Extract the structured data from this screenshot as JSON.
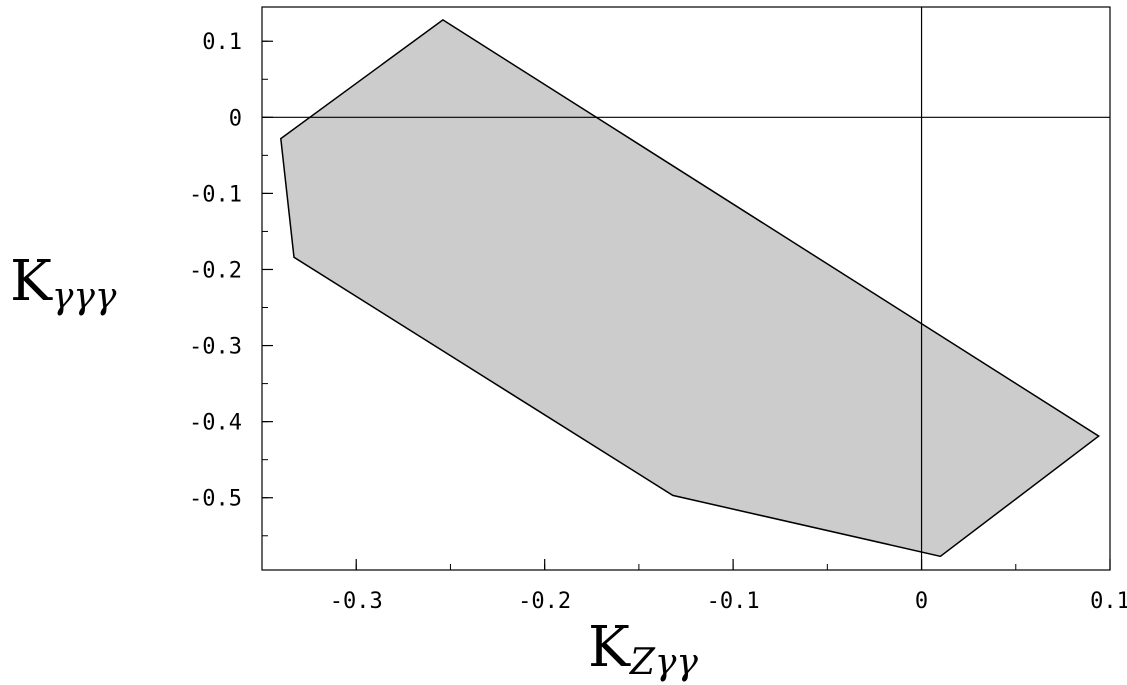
{
  "chart_data": {
    "type": "area",
    "xlabel": {
      "main": "K",
      "sub": "Zγγ"
    },
    "ylabel": {
      "main": "K",
      "sub": "γγγ"
    },
    "xlim": [
      -0.35,
      0.1
    ],
    "ylim": [
      -0.595,
      0.145
    ],
    "x_ticks": [
      {
        "value": -0.3,
        "label": "-0.3"
      },
      {
        "value": -0.2,
        "label": "-0.2"
      },
      {
        "value": -0.1,
        "label": "-0.1"
      },
      {
        "value": 0,
        "label": "0"
      },
      {
        "value": 0.1,
        "label": "0.1"
      }
    ],
    "y_ticks": [
      {
        "value": 0.1,
        "label": "0.1"
      },
      {
        "value": 0,
        "label": "0"
      },
      {
        "value": -0.1,
        "label": "-0.1"
      },
      {
        "value": -0.2,
        "label": "-0.2"
      },
      {
        "value": -0.3,
        "label": "-0.3"
      },
      {
        "value": -0.4,
        "label": "-0.4"
      },
      {
        "value": -0.5,
        "label": "-0.5"
      }
    ],
    "x_minor_step": 0.05,
    "y_minor_step": 0.05,
    "zero_lines": true,
    "grid": false,
    "fill_color": "#cccccc",
    "edge_color": "#000000",
    "region": [
      {
        "x": -0.254,
        "y": 0.128
      },
      {
        "x": 0.094,
        "y": -0.419
      },
      {
        "x": 0.01,
        "y": -0.577
      },
      {
        "x": -0.132,
        "y": -0.497
      },
      {
        "x": -0.333,
        "y": -0.184
      },
      {
        "x": -0.34,
        "y": -0.028
      }
    ]
  }
}
